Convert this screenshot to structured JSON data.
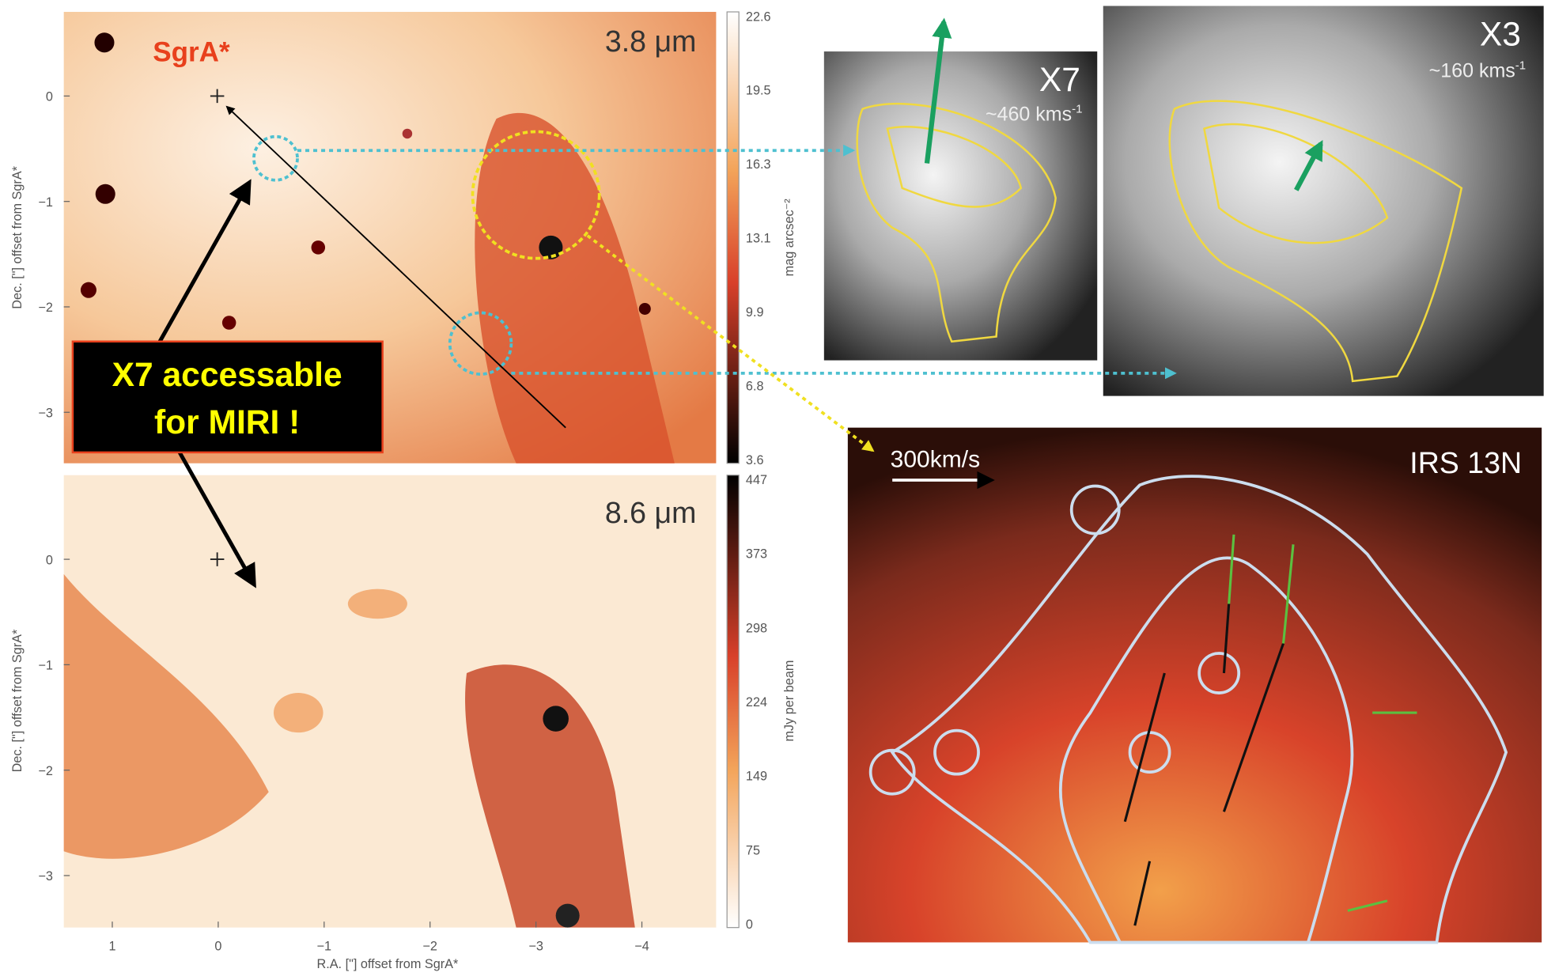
{
  "panels": {
    "top_left": {
      "label": "3.8 μm",
      "marker": "SgrA*",
      "ylabel": "Dec. [\"] offset from SgrA*",
      "yticks": [
        "0",
        "−1",
        "−2",
        "−3"
      ],
      "colorbar": {
        "label": "mag arcsec⁻²",
        "ticks": [
          "22.6",
          "19.5",
          "16.3",
          "13.1",
          "9.9",
          "6.8",
          "3.6"
        ]
      }
    },
    "bottom_left": {
      "label": "8.6 μm",
      "ylabel": "Dec. [\"] offset from SgrA*",
      "yticks": [
        "0",
        "−1",
        "−2",
        "−3"
      ],
      "xlabel": "R.A. [\"] offset from SgrA*",
      "xticks": [
        "1",
        "0",
        "−1",
        "−2",
        "−3",
        "−4"
      ],
      "colorbar": {
        "label": "mJy per beam",
        "ticks": [
          "447",
          "373",
          "298",
          "224",
          "149",
          "75",
          "0"
        ]
      }
    },
    "x7": {
      "label": "X7",
      "velocity": "~460 kms",
      "velocity_exp": "-1"
    },
    "x3": {
      "label": "X3",
      "velocity": "~160 kms",
      "velocity_exp": "-1"
    },
    "irs13n": {
      "label": "IRS 13N",
      "scale": "300km/s"
    }
  },
  "callout": {
    "line1": "X7 accessable",
    "line2": "for MIRI !"
  }
}
